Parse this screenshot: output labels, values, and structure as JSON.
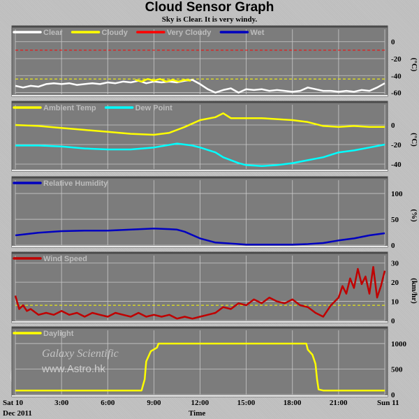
{
  "header": {
    "title": "Cloud Sensor Graph",
    "subtitle": "Sky is Clear. It is very windy."
  },
  "x_axis": {
    "label": "Time",
    "range": [
      0,
      24
    ],
    "ticks": [
      {
        "hour": 0,
        "label": "Sat 10"
      },
      {
        "hour": 3,
        "label": "3:00"
      },
      {
        "hour": 6,
        "label": "6:00"
      },
      {
        "hour": 9,
        "label": "9:00"
      },
      {
        "hour": 12,
        "label": "12:00"
      },
      {
        "hour": 15,
        "label": "15:00"
      },
      {
        "hour": 18,
        "label": "18:00"
      },
      {
        "hour": 21,
        "label": "21:00"
      },
      {
        "hour": 24,
        "label": "Sun 11"
      }
    ],
    "date_label": "Dec 2011"
  },
  "watermark": {
    "line1": "Galaxy Scientific",
    "line2": "www.Astro.hk"
  },
  "chart_data": [
    {
      "type": "line",
      "ylabel": "(°C)",
      "ylim": [
        -62,
        8
      ],
      "yticks": [
        0,
        -20,
        -40,
        -60
      ],
      "legend": [
        {
          "name": "Clear",
          "color": "#ffffff"
        },
        {
          "name": "Cloudy",
          "color": "#ffff00"
        },
        {
          "name": "Very Cloudy",
          "color": "#ff0000"
        },
        {
          "name": "Wet",
          "color": "#0000c0"
        }
      ],
      "thresholds": [
        {
          "value": -10,
          "color": "#ff0000"
        },
        {
          "value": -44,
          "color": "#ffff00"
        }
      ],
      "series": [
        {
          "name": "Clear",
          "color": "#ffffff",
          "points": [
            [
              0,
              -52
            ],
            [
              0.5,
              -54
            ],
            [
              1,
              -52
            ],
            [
              1.5,
              -53
            ],
            [
              2,
              -50
            ],
            [
              2.5,
              -49
            ],
            [
              3,
              -50
            ],
            [
              3.5,
              -49
            ],
            [
              4,
              -51
            ],
            [
              4.5,
              -50
            ],
            [
              5,
              -49
            ],
            [
              5.5,
              -50
            ],
            [
              6,
              -48
            ],
            [
              6.5,
              -49
            ],
            [
              7,
              -47
            ],
            [
              7.5,
              -48
            ],
            [
              8,
              -46
            ],
            [
              8.5,
              -49
            ],
            [
              9,
              -47
            ],
            [
              9.5,
              -48
            ],
            [
              10,
              -47
            ],
            [
              10.5,
              -48
            ],
            [
              11,
              -46
            ],
            [
              11.5,
              -45
            ],
            [
              12,
              -50
            ],
            [
              12.5,
              -56
            ],
            [
              13,
              -60
            ],
            [
              13.5,
              -57
            ],
            [
              14,
              -55
            ],
            [
              14.5,
              -60
            ],
            [
              15,
              -56
            ],
            [
              15.5,
              -57
            ],
            [
              16,
              -56
            ],
            [
              16.5,
              -58
            ],
            [
              17,
              -57
            ],
            [
              17.5,
              -58
            ],
            [
              18,
              -59
            ],
            [
              18.5,
              -58
            ],
            [
              19,
              -54
            ],
            [
              19.5,
              -56
            ],
            [
              20,
              -58
            ],
            [
              20.5,
              -58
            ],
            [
              21,
              -59
            ],
            [
              21.5,
              -58
            ],
            [
              22,
              -59
            ],
            [
              22.5,
              -57
            ],
            [
              23,
              -58
            ],
            [
              23.5,
              -54
            ],
            [
              24,
              -49
            ]
          ]
        },
        {
          "name": "Cloudy",
          "color": "#ffff00",
          "points": [
            [
              7.8,
              -45
            ],
            [
              8.2,
              -47
            ],
            [
              8.6,
              -44
            ],
            [
              9,
              -46
            ],
            [
              9.4,
              -44
            ],
            [
              9.8,
              -47
            ],
            [
              10.2,
              -45
            ],
            [
              10.6,
              -47
            ],
            [
              11,
              -45
            ],
            [
              11.4,
              -46
            ]
          ]
        }
      ]
    },
    {
      "type": "line",
      "ylabel": "(°C)",
      "ylim": [
        -45,
        15
      ],
      "yticks": [
        0,
        -20,
        -40
      ],
      "legend": [
        {
          "name": "Ambient Temp",
          "color": "#ffff00"
        },
        {
          "name": "Dew Point",
          "color": "#00ffff"
        }
      ],
      "thresholds": [],
      "series": [
        {
          "name": "Ambient Temp",
          "color": "#ffff00",
          "points": [
            [
              0,
              0
            ],
            [
              1.5,
              -1
            ],
            [
              3,
              -3
            ],
            [
              4.5,
              -5
            ],
            [
              6,
              -7
            ],
            [
              7.5,
              -9
            ],
            [
              9,
              -10
            ],
            [
              10,
              -8
            ],
            [
              11,
              -2
            ],
            [
              12,
              5
            ],
            [
              13,
              8
            ],
            [
              13.5,
              12
            ],
            [
              14,
              7
            ],
            [
              15,
              7
            ],
            [
              16,
              7
            ],
            [
              17,
              6
            ],
            [
              18,
              5
            ],
            [
              19,
              3
            ],
            [
              20,
              -1
            ],
            [
              21,
              -2
            ],
            [
              22,
              -1
            ],
            [
              23,
              -2
            ],
            [
              24,
              -2
            ]
          ]
        },
        {
          "name": "Dew Point",
          "color": "#00ffff",
          "points": [
            [
              0,
              -21
            ],
            [
              1.5,
              -21
            ],
            [
              3,
              -22
            ],
            [
              4.5,
              -24
            ],
            [
              6,
              -25
            ],
            [
              7.5,
              -25
            ],
            [
              9,
              -23
            ],
            [
              10.5,
              -19
            ],
            [
              11.5,
              -21
            ],
            [
              12,
              -23
            ],
            [
              13,
              -28
            ],
            [
              13.5,
              -33
            ],
            [
              14.5,
              -39
            ],
            [
              15,
              -41
            ],
            [
              16,
              -42
            ],
            [
              17,
              -41
            ],
            [
              18,
              -39
            ],
            [
              19,
              -36
            ],
            [
              20,
              -33
            ],
            [
              21,
              -28
            ],
            [
              22,
              -26
            ],
            [
              23,
              -23
            ],
            [
              24,
              -20
            ]
          ]
        }
      ]
    },
    {
      "type": "line",
      "ylabel": "(%)",
      "ylim": [
        0,
        115
      ],
      "yticks": [
        100,
        50,
        0
      ],
      "legend": [
        {
          "name": "Relative Humidity",
          "color": "#0000c0"
        }
      ],
      "thresholds": [],
      "series": [
        {
          "name": "Relative Humidity",
          "color": "#0000c0",
          "points": [
            [
              0,
              19
            ],
            [
              1.5,
              24
            ],
            [
              3,
              27
            ],
            [
              4.5,
              28
            ],
            [
              6,
              28
            ],
            [
              7.5,
              30
            ],
            [
              9,
              32
            ],
            [
              10,
              31
            ],
            [
              10.5,
              30
            ],
            [
              11,
              26
            ],
            [
              12,
              13
            ],
            [
              13,
              5
            ],
            [
              14,
              3
            ],
            [
              15,
              1
            ],
            [
              16,
              1
            ],
            [
              17,
              1
            ],
            [
              18,
              1
            ],
            [
              19,
              2
            ],
            [
              20,
              4
            ],
            [
              21,
              9
            ],
            [
              22,
              13
            ],
            [
              23,
              19
            ],
            [
              24,
              23
            ]
          ]
        }
      ]
    },
    {
      "type": "line",
      "ylabel": "(km/hr)",
      "ylim": [
        0,
        31
      ],
      "yticks": [
        30,
        20,
        10,
        0
      ],
      "legend": [
        {
          "name": "Wind Speed",
          "color": "#c00000"
        }
      ],
      "thresholds": [
        {
          "value": 8,
          "color": "#ffff00"
        }
      ],
      "series": [
        {
          "name": "Wind Speed",
          "color": "#c00000",
          "points": [
            [
              0,
              13
            ],
            [
              0.25,
              6
            ],
            [
              0.5,
              8
            ],
            [
              0.75,
              5
            ],
            [
              1,
              6
            ],
            [
              1.5,
              3
            ],
            [
              2,
              4
            ],
            [
              2.5,
              3
            ],
            [
              3,
              5
            ],
            [
              3.5,
              3
            ],
            [
              4,
              4
            ],
            [
              4.5,
              2
            ],
            [
              5,
              4
            ],
            [
              5.5,
              3
            ],
            [
              6,
              2
            ],
            [
              6.5,
              4
            ],
            [
              7,
              3
            ],
            [
              7.5,
              2
            ],
            [
              8,
              4
            ],
            [
              8.5,
              2
            ],
            [
              9,
              3
            ],
            [
              9.5,
              2
            ],
            [
              10,
              3
            ],
            [
              10.5,
              1
            ],
            [
              11,
              2
            ],
            [
              11.5,
              1
            ],
            [
              12,
              2
            ],
            [
              12.5,
              3
            ],
            [
              13,
              4
            ],
            [
              13.5,
              7
            ],
            [
              14,
              6
            ],
            [
              14.5,
              9
            ],
            [
              15,
              8
            ],
            [
              15.5,
              11
            ],
            [
              16,
              9
            ],
            [
              16.5,
              12
            ],
            [
              17,
              10
            ],
            [
              17.5,
              9
            ],
            [
              18,
              11
            ],
            [
              18.5,
              8
            ],
            [
              19,
              7
            ],
            [
              19.5,
              4
            ],
            [
              20,
              2
            ],
            [
              20.5,
              8
            ],
            [
              21,
              12
            ],
            [
              21.25,
              18
            ],
            [
              21.5,
              14
            ],
            [
              21.75,
              22
            ],
            [
              22,
              17
            ],
            [
              22.25,
              27
            ],
            [
              22.5,
              19
            ],
            [
              22.75,
              23
            ],
            [
              23,
              14
            ],
            [
              23.25,
              28
            ],
            [
              23.5,
              12
            ],
            [
              23.75,
              18
            ],
            [
              24,
              26
            ]
          ]
        }
      ]
    },
    {
      "type": "line",
      "ylabel": "",
      "ylim": [
        0,
        1150
      ],
      "yticks": [
        1000,
        500,
        0
      ],
      "legend": [
        {
          "name": "Daylight",
          "color": "#ffff00"
        }
      ],
      "thresholds": [],
      "series": [
        {
          "name": "Daylight",
          "color": "#ffff00",
          "points": [
            [
              0,
              80
            ],
            [
              4,
              80
            ],
            [
              8.2,
              80
            ],
            [
              8.4,
              300
            ],
            [
              8.5,
              650
            ],
            [
              8.8,
              850
            ],
            [
              9.2,
              920
            ],
            [
              9.3,
              1000
            ],
            [
              12,
              1000
            ],
            [
              15,
              1000
            ],
            [
              18,
              1000
            ],
            [
              18.9,
              1000
            ],
            [
              19.0,
              880
            ],
            [
              19.3,
              780
            ],
            [
              19.5,
              600
            ],
            [
              19.6,
              300
            ],
            [
              19.7,
              100
            ],
            [
              20,
              80
            ],
            [
              22,
              80
            ],
            [
              24,
              78
            ]
          ]
        }
      ]
    }
  ]
}
